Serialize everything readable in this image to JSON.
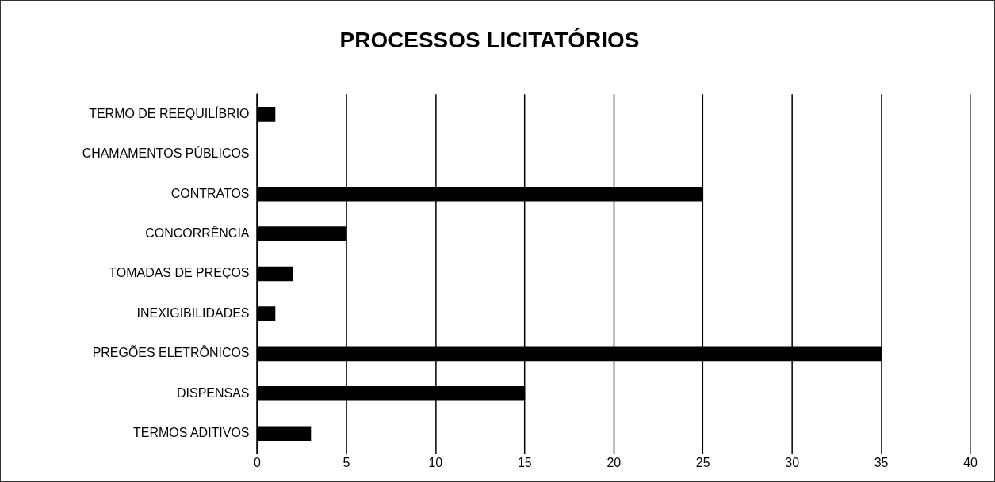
{
  "chart_data": {
    "type": "bar",
    "orientation": "horizontal",
    "title": "PROCESSOS LICITATÓRIOS",
    "categories": [
      "TERMO DE REEQUILÍBRIO",
      "CHAMAMENTOS PÚBLICOS",
      "CONTRATOS",
      "CONCORRÊNCIA",
      "TOMADAS DE PREÇOS",
      "INEXIGIBILIDADES",
      "PREGÕES ELETRÔNICOS",
      "DISPENSAS",
      "TERMOS ADITIVOS"
    ],
    "values": [
      1,
      0,
      25,
      5,
      2,
      1,
      35,
      15,
      3
    ],
    "color": "#000000",
    "xlim": [
      0,
      40
    ],
    "xticks": [
      0,
      5,
      10,
      15,
      20,
      25,
      30,
      35,
      40
    ],
    "grid": "x",
    "legend": false
  }
}
